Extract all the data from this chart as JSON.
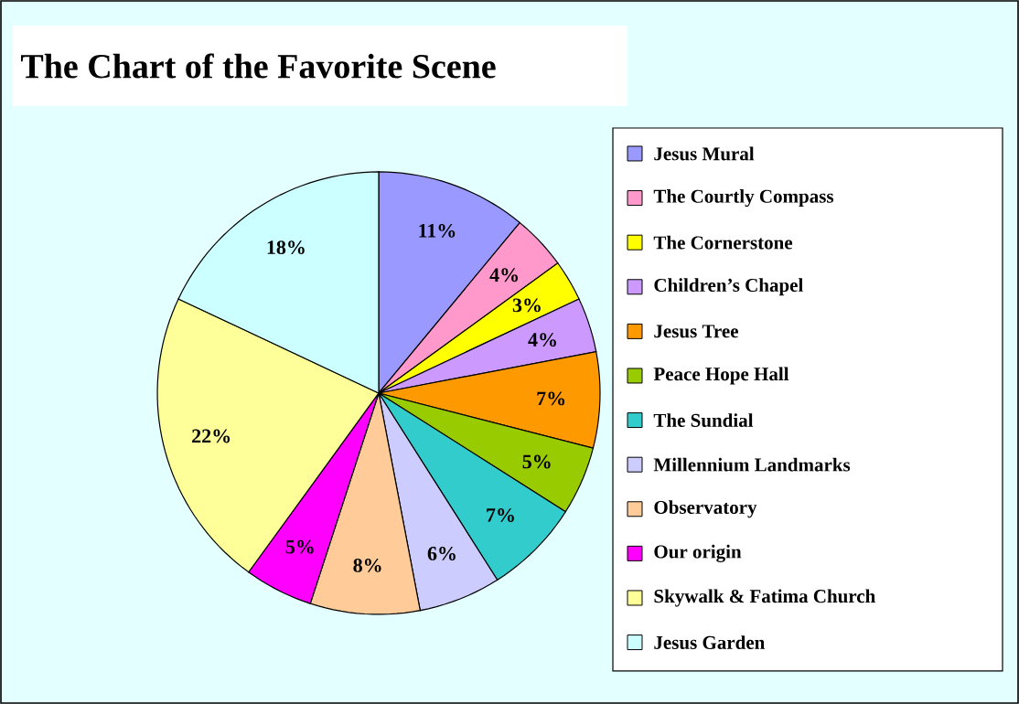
{
  "chart_data": {
    "type": "pie",
    "title": "The Chart of the Favorite Scene",
    "categories": [
      "Jesus Mural",
      "The Courtly Compass",
      "The Cornerstone",
      "Children’s Chapel",
      "Jesus Tree",
      "Peace Hope Hall",
      "The Sundial",
      "Millennium Landmarks",
      "Observatory",
      "Our origin",
      "Skywalk & Fatima Church",
      "Jesus Garden"
    ],
    "values": [
      11,
      4,
      3,
      4,
      7,
      5,
      7,
      6,
      8,
      5,
      22,
      18
    ],
    "value_labels": [
      "11%",
      "4%",
      "3%",
      "4%",
      "7%",
      "5%",
      "7%",
      "6%",
      "8%",
      "5%",
      "22%",
      "18%"
    ],
    "colors": [
      "#9999ff",
      "#ff99cc",
      "#ffff00",
      "#cc99ff",
      "#ff9900",
      "#99cc00",
      "#33cccc",
      "#ccccff",
      "#ffcc99",
      "#ff00ff",
      "#ffff99",
      "#ccffff"
    ],
    "legend": "right"
  }
}
